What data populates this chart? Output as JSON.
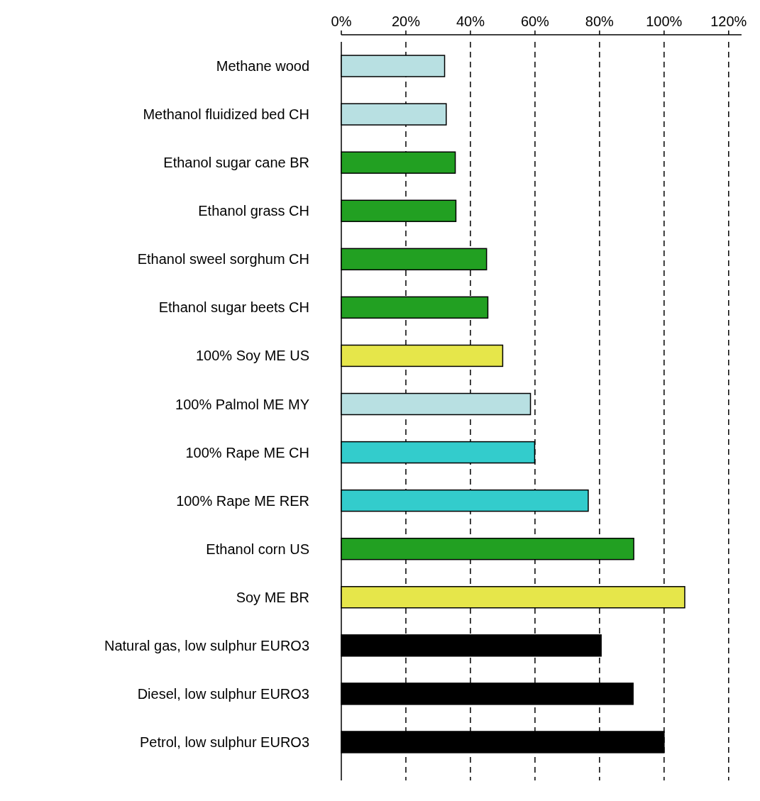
{
  "chart_data": {
    "type": "bar",
    "orientation": "horizontal",
    "categories": [
      "Methane wood",
      "Methanol fluidized bed CH",
      "Ethanol sugar cane BR",
      "Ethanol grass CH",
      "Ethanol sweel sorghum CH",
      "Ethanol sugar beets CH",
      "100% Soy  ME US",
      "100% Palmol ME MY",
      "100% Rape ME CH",
      "100% Rape ME RER",
      "Ethanol corn US",
      "Soy ME BR",
      "Natural gas, low sulphur EURO3",
      "Diesel, low sulphur EURO3",
      "Petrol, low sulphur EURO3"
    ],
    "values": [
      32,
      32.5,
      35.3,
      35.5,
      45,
      45.4,
      50,
      58.6,
      59.9,
      76.5,
      90.6,
      106.4,
      80.5,
      90.4,
      100
    ],
    "colors": [
      "#b8e0e2",
      "#b8e0e2",
      "#22a022",
      "#22a022",
      "#22a022",
      "#22a022",
      "#e6e64a",
      "#b8e0e2",
      "#33cccc",
      "#33cccc",
      "#22a022",
      "#e6e64a",
      "#000000",
      "#000000",
      "#000000"
    ],
    "xlim": [
      0,
      124
    ],
    "xticks": [
      {
        "value": 0,
        "label": "0%"
      },
      {
        "value": 20,
        "label": "20%"
      },
      {
        "value": 40,
        "label": "40%"
      },
      {
        "value": 60,
        "label": "60%"
      },
      {
        "value": 80,
        "label": "80%"
      },
      {
        "value": 100,
        "label": "100%"
      },
      {
        "value": 120,
        "label": "120%"
      }
    ],
    "grid": "x"
  }
}
